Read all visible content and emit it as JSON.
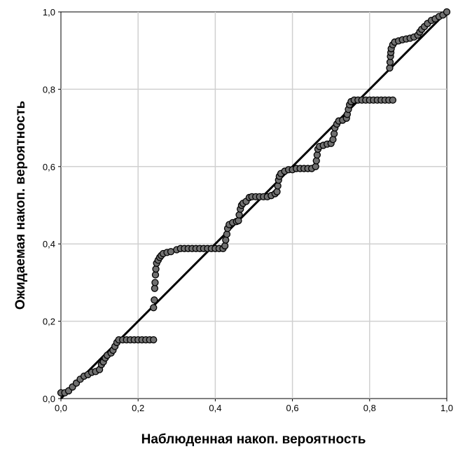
{
  "chart_data": {
    "type": "scatter",
    "title": "",
    "xlabel": "Наблюденная накоп. вероятность",
    "ylabel": "Ожидаемая накоп. вероятность",
    "xlim": [
      0,
      1
    ],
    "ylim": [
      0,
      1
    ],
    "x_ticks": [
      "0,0",
      "0,2",
      "0,4",
      "0,6",
      "0,8",
      "1,0"
    ],
    "y_ticks": [
      "0,0",
      "0,2",
      "0,4",
      "0,6",
      "0,8",
      "1,0"
    ],
    "grid": true,
    "reference_line": {
      "from": [
        0,
        0
      ],
      "to": [
        1,
        1
      ]
    },
    "marker_color": "#707070",
    "marker_edge_color": "#000000",
    "points": [
      [
        0.0,
        0.015
      ],
      [
        0.01,
        0.015
      ],
      [
        0.02,
        0.02
      ],
      [
        0.03,
        0.03
      ],
      [
        0.04,
        0.04
      ],
      [
        0.05,
        0.05
      ],
      [
        0.06,
        0.058
      ],
      [
        0.07,
        0.062
      ],
      [
        0.08,
        0.068
      ],
      [
        0.09,
        0.07
      ],
      [
        0.1,
        0.075
      ],
      [
        0.105,
        0.088
      ],
      [
        0.11,
        0.095
      ],
      [
        0.115,
        0.105
      ],
      [
        0.12,
        0.112
      ],
      [
        0.13,
        0.118
      ],
      [
        0.135,
        0.125
      ],
      [
        0.14,
        0.135
      ],
      [
        0.145,
        0.145
      ],
      [
        0.15,
        0.152
      ],
      [
        0.16,
        0.152
      ],
      [
        0.17,
        0.152
      ],
      [
        0.18,
        0.152
      ],
      [
        0.19,
        0.152
      ],
      [
        0.2,
        0.152
      ],
      [
        0.21,
        0.152
      ],
      [
        0.22,
        0.152
      ],
      [
        0.23,
        0.152
      ],
      [
        0.24,
        0.152
      ],
      [
        0.24,
        0.235
      ],
      [
        0.242,
        0.255
      ],
      [
        0.243,
        0.285
      ],
      [
        0.244,
        0.3
      ],
      [
        0.245,
        0.32
      ],
      [
        0.246,
        0.335
      ],
      [
        0.248,
        0.35
      ],
      [
        0.252,
        0.358
      ],
      [
        0.256,
        0.365
      ],
      [
        0.26,
        0.37
      ],
      [
        0.265,
        0.375
      ],
      [
        0.275,
        0.378
      ],
      [
        0.285,
        0.38
      ],
      [
        0.3,
        0.385
      ],
      [
        0.31,
        0.388
      ],
      [
        0.32,
        0.388
      ],
      [
        0.33,
        0.388
      ],
      [
        0.34,
        0.388
      ],
      [
        0.35,
        0.388
      ],
      [
        0.36,
        0.388
      ],
      [
        0.37,
        0.388
      ],
      [
        0.38,
        0.388
      ],
      [
        0.39,
        0.388
      ],
      [
        0.4,
        0.388
      ],
      [
        0.41,
        0.388
      ],
      [
        0.42,
        0.388
      ],
      [
        0.425,
        0.395
      ],
      [
        0.427,
        0.41
      ],
      [
        0.43,
        0.425
      ],
      [
        0.432,
        0.44
      ],
      [
        0.436,
        0.45
      ],
      [
        0.445,
        0.455
      ],
      [
        0.455,
        0.458
      ],
      [
        0.46,
        0.46
      ],
      [
        0.462,
        0.475
      ],
      [
        0.465,
        0.49
      ],
      [
        0.468,
        0.5
      ],
      [
        0.472,
        0.505
      ],
      [
        0.48,
        0.51
      ],
      [
        0.488,
        0.52
      ],
      [
        0.495,
        0.522
      ],
      [
        0.505,
        0.522
      ],
      [
        0.515,
        0.522
      ],
      [
        0.525,
        0.522
      ],
      [
        0.535,
        0.522
      ],
      [
        0.545,
        0.525
      ],
      [
        0.555,
        0.53
      ],
      [
        0.56,
        0.535
      ],
      [
        0.562,
        0.55
      ],
      [
        0.564,
        0.565
      ],
      [
        0.566,
        0.575
      ],
      [
        0.57,
        0.582
      ],
      [
        0.58,
        0.588
      ],
      [
        0.59,
        0.592
      ],
      [
        0.6,
        0.592
      ],
      [
        0.61,
        0.595
      ],
      [
        0.62,
        0.595
      ],
      [
        0.63,
        0.595
      ],
      [
        0.64,
        0.595
      ],
      [
        0.65,
        0.595
      ],
      [
        0.66,
        0.6
      ],
      [
        0.662,
        0.615
      ],
      [
        0.664,
        0.63
      ],
      [
        0.666,
        0.645
      ],
      [
        0.67,
        0.652
      ],
      [
        0.68,
        0.655
      ],
      [
        0.69,
        0.658
      ],
      [
        0.7,
        0.66
      ],
      [
        0.705,
        0.67
      ],
      [
        0.708,
        0.685
      ],
      [
        0.71,
        0.7
      ],
      [
        0.715,
        0.71
      ],
      [
        0.72,
        0.718
      ],
      [
        0.73,
        0.72
      ],
      [
        0.74,
        0.725
      ],
      [
        0.742,
        0.735
      ],
      [
        0.745,
        0.748
      ],
      [
        0.748,
        0.76
      ],
      [
        0.752,
        0.768
      ],
      [
        0.76,
        0.772
      ],
      [
        0.77,
        0.772
      ],
      [
        0.78,
        0.772
      ],
      [
        0.79,
        0.772
      ],
      [
        0.8,
        0.772
      ],
      [
        0.81,
        0.772
      ],
      [
        0.82,
        0.772
      ],
      [
        0.83,
        0.772
      ],
      [
        0.84,
        0.772
      ],
      [
        0.85,
        0.772
      ],
      [
        0.86,
        0.772
      ],
      [
        0.852,
        0.855
      ],
      [
        0.853,
        0.87
      ],
      [
        0.854,
        0.885
      ],
      [
        0.855,
        0.895
      ],
      [
        0.856,
        0.905
      ],
      [
        0.86,
        0.915
      ],
      [
        0.865,
        0.922
      ],
      [
        0.875,
        0.925
      ],
      [
        0.885,
        0.928
      ],
      [
        0.895,
        0.93
      ],
      [
        0.905,
        0.932
      ],
      [
        0.915,
        0.935
      ],
      [
        0.925,
        0.94
      ],
      [
        0.93,
        0.948
      ],
      [
        0.935,
        0.955
      ],
      [
        0.942,
        0.962
      ],
      [
        0.95,
        0.97
      ],
      [
        0.96,
        0.978
      ],
      [
        0.97,
        0.982
      ],
      [
        0.98,
        0.988
      ],
      [
        0.99,
        0.992
      ],
      [
        1.0,
        1.0
      ]
    ]
  }
}
